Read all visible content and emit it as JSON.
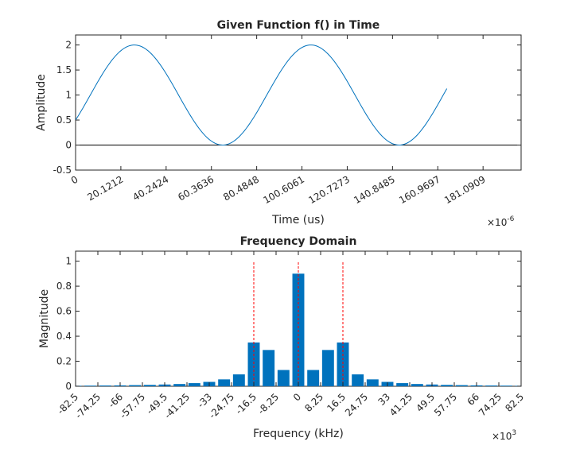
{
  "chart_data": [
    {
      "type": "line",
      "title": "Given Function f() in Time",
      "xlabel": "Time (us)",
      "ylabel": "Amplitude",
      "x_exponent_label": "×10",
      "x_exponent": "-6",
      "xlim": [
        0,
        0.000198
      ],
      "ylim": [
        -0.5,
        2.2
      ],
      "xtick_labels": [
        "0",
        "20.1212",
        "40.2424",
        "60.3636",
        "80.4848",
        "100.6061",
        "120.7273",
        "140.8485",
        "160.9697",
        "181.0909"
      ],
      "xtick_values": [
        0,
        2.01212e-05,
        4.02424e-05,
        6.03636e-05,
        8.04848e-05,
        0.0001006061,
        0.0001207273,
        0.0001408485,
        0.0001609697,
        0.0001810909
      ],
      "ytick_labels": [
        "-0.5",
        "0",
        "0.5",
        "1",
        "1.5",
        "2"
      ],
      "ytick_values": [
        -0.5,
        0,
        0.5,
        1,
        1.5,
        2
      ],
      "series": [
        {
          "color": "#0072bd",
          "function": {
            "offset": 1,
            "amplitude": 1,
            "frequency_hz": 12750,
            "phase_rad": -2.0944
          },
          "x_range": [
            0,
            0.000165
          ],
          "samples": 200
        }
      ],
      "reference_line": {
        "y": 0,
        "color": "#000000"
      },
      "grid": false
    },
    {
      "type": "bar",
      "title": "Frequency Domain",
      "xlabel": "Frequency (kHz)",
      "ylabel": "Magnitude",
      "x_exponent_label": "×10",
      "x_exponent": "3",
      "xlim": [
        -82500,
        82500
      ],
      "ylim": [
        0,
        1.08
      ],
      "bar_spacing": 5500,
      "bar_width": 4400,
      "bar_color": "#0072bd",
      "x": [
        -82500,
        -77000,
        -71500,
        -66000,
        -60500,
        -55000,
        -49500,
        -44000,
        -38500,
        -33000,
        -27500,
        -22000,
        -16500,
        -11000,
        -5500,
        0,
        5500,
        11000,
        16500,
        22000,
        27500,
        33000,
        38500,
        44000,
        49500,
        55000,
        60500,
        66000,
        71500,
        77000,
        82500
      ],
      "values": [
        0.004,
        0.005,
        0.006,
        0.007,
        0.009,
        0.011,
        0.014,
        0.018,
        0.025,
        0.035,
        0.055,
        0.095,
        0.35,
        0.29,
        0.13,
        0.9,
        0.13,
        0.29,
        0.35,
        0.095,
        0.055,
        0.035,
        0.025,
        0.018,
        0.014,
        0.011,
        0.009,
        0.007,
        0.006,
        0.005,
        0.004
      ],
      "xtick_labels": [
        "-82.5",
        "-74.25",
        "-66",
        "-57.75",
        "-49.5",
        "-41.25",
        "-33",
        "-24.75",
        "-16.5",
        "-8.25",
        "0",
        "8.25",
        "16.5",
        "24.75",
        "33",
        "41.25",
        "49.5",
        "57.75",
        "66",
        "74.25",
        "82.5"
      ],
      "xtick_values": [
        -82500,
        -74250,
        -66000,
        -57750,
        -49500,
        -41250,
        -33000,
        -24750,
        -16500,
        -8250,
        0,
        8250,
        16500,
        24750,
        33000,
        41250,
        49500,
        57750,
        66000,
        74250,
        82500
      ],
      "ytick_labels": [
        "0",
        "0.2",
        "0.4",
        "0.6",
        "0.8",
        "1"
      ],
      "ytick_values": [
        0,
        0.2,
        0.4,
        0.6,
        0.8,
        1
      ],
      "markers": {
        "x": [
          -16500,
          0,
          16500
        ],
        "color": "#ff0000",
        "style": "dashed"
      },
      "grid": false
    }
  ]
}
